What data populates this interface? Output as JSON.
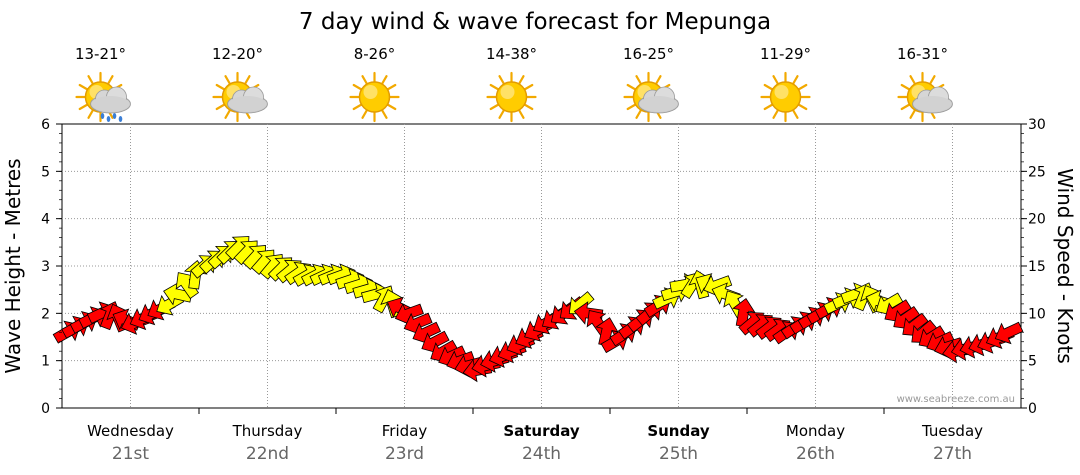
{
  "chart_data": {
    "type": "line",
    "title": "7 day wind & wave forecast for Mepunga",
    "ylabel_left": "Wave Height - Metres",
    "ylabel_right": "Wind Speed - Knots",
    "ylim_left": [
      0,
      6
    ],
    "ylim_right": [
      0,
      30
    ],
    "yticks_left": [
      "0",
      "1",
      "2",
      "3",
      "4",
      "5",
      "6"
    ],
    "yticks_right": [
      "0",
      "5",
      "10",
      "15",
      "20",
      "25",
      "30"
    ],
    "grid": true,
    "watermark": "www.seabreeze.com.au",
    "days": [
      {
        "name": "Wednesday",
        "date": "21st",
        "temp": "13-21°",
        "weather": "sun-cloud-rain-icon",
        "bold": false
      },
      {
        "name": "Thursday",
        "date": "22nd",
        "temp": "12-20°",
        "weather": "sun-cloud-icon",
        "bold": false
      },
      {
        "name": "Friday",
        "date": "23rd",
        "temp": "8-26°",
        "weather": "sun-icon",
        "bold": false
      },
      {
        "name": "Saturday",
        "date": "24th",
        "temp": "14-38°",
        "weather": "sun-icon",
        "bold": true
      },
      {
        "name": "Sunday",
        "date": "25th",
        "temp": "16-25°",
        "weather": "sun-cloud-icon",
        "bold": true
      },
      {
        "name": "Monday",
        "date": "26th",
        "temp": "11-29°",
        "weather": "sun-icon",
        "bold": false
      },
      {
        "name": "Tuesday",
        "date": "27th",
        "temp": "16-31°",
        "weather": "sun-cloud-icon",
        "bold": false
      }
    ],
    "colors": {
      "strong_wind": "#ff0000",
      "light_wind": "#ffff00",
      "outline": "#000000",
      "grid": "#999999"
    },
    "series": [
      {
        "name": "Wind speed (knots) with direction arrows",
        "x_hours": [
          0,
          6,
          12,
          18,
          24,
          30,
          36,
          42,
          48,
          54,
          60,
          66,
          72,
          78,
          84,
          90,
          96,
          102,
          108,
          114,
          120,
          126,
          132,
          138,
          144,
          150,
          156,
          162,
          168
        ],
        "values": [
          8,
          10,
          9,
          11,
          15,
          17,
          15,
          14,
          14,
          12,
          10,
          6,
          4,
          6,
          9,
          11,
          7,
          10,
          13,
          13,
          9,
          8,
          10,
          12,
          11,
          8,
          6,
          7,
          9
        ],
        "arrow_angles_deg": [
          30,
          25,
          200,
          210,
          40,
          45,
          50,
          30,
          20,
          15,
          200,
          210,
          190,
          200,
          210,
          220,
          30,
          40,
          10,
          200,
          40,
          35,
          30,
          20,
          210,
          220,
          190,
          200,
          210
        ]
      }
    ]
  }
}
